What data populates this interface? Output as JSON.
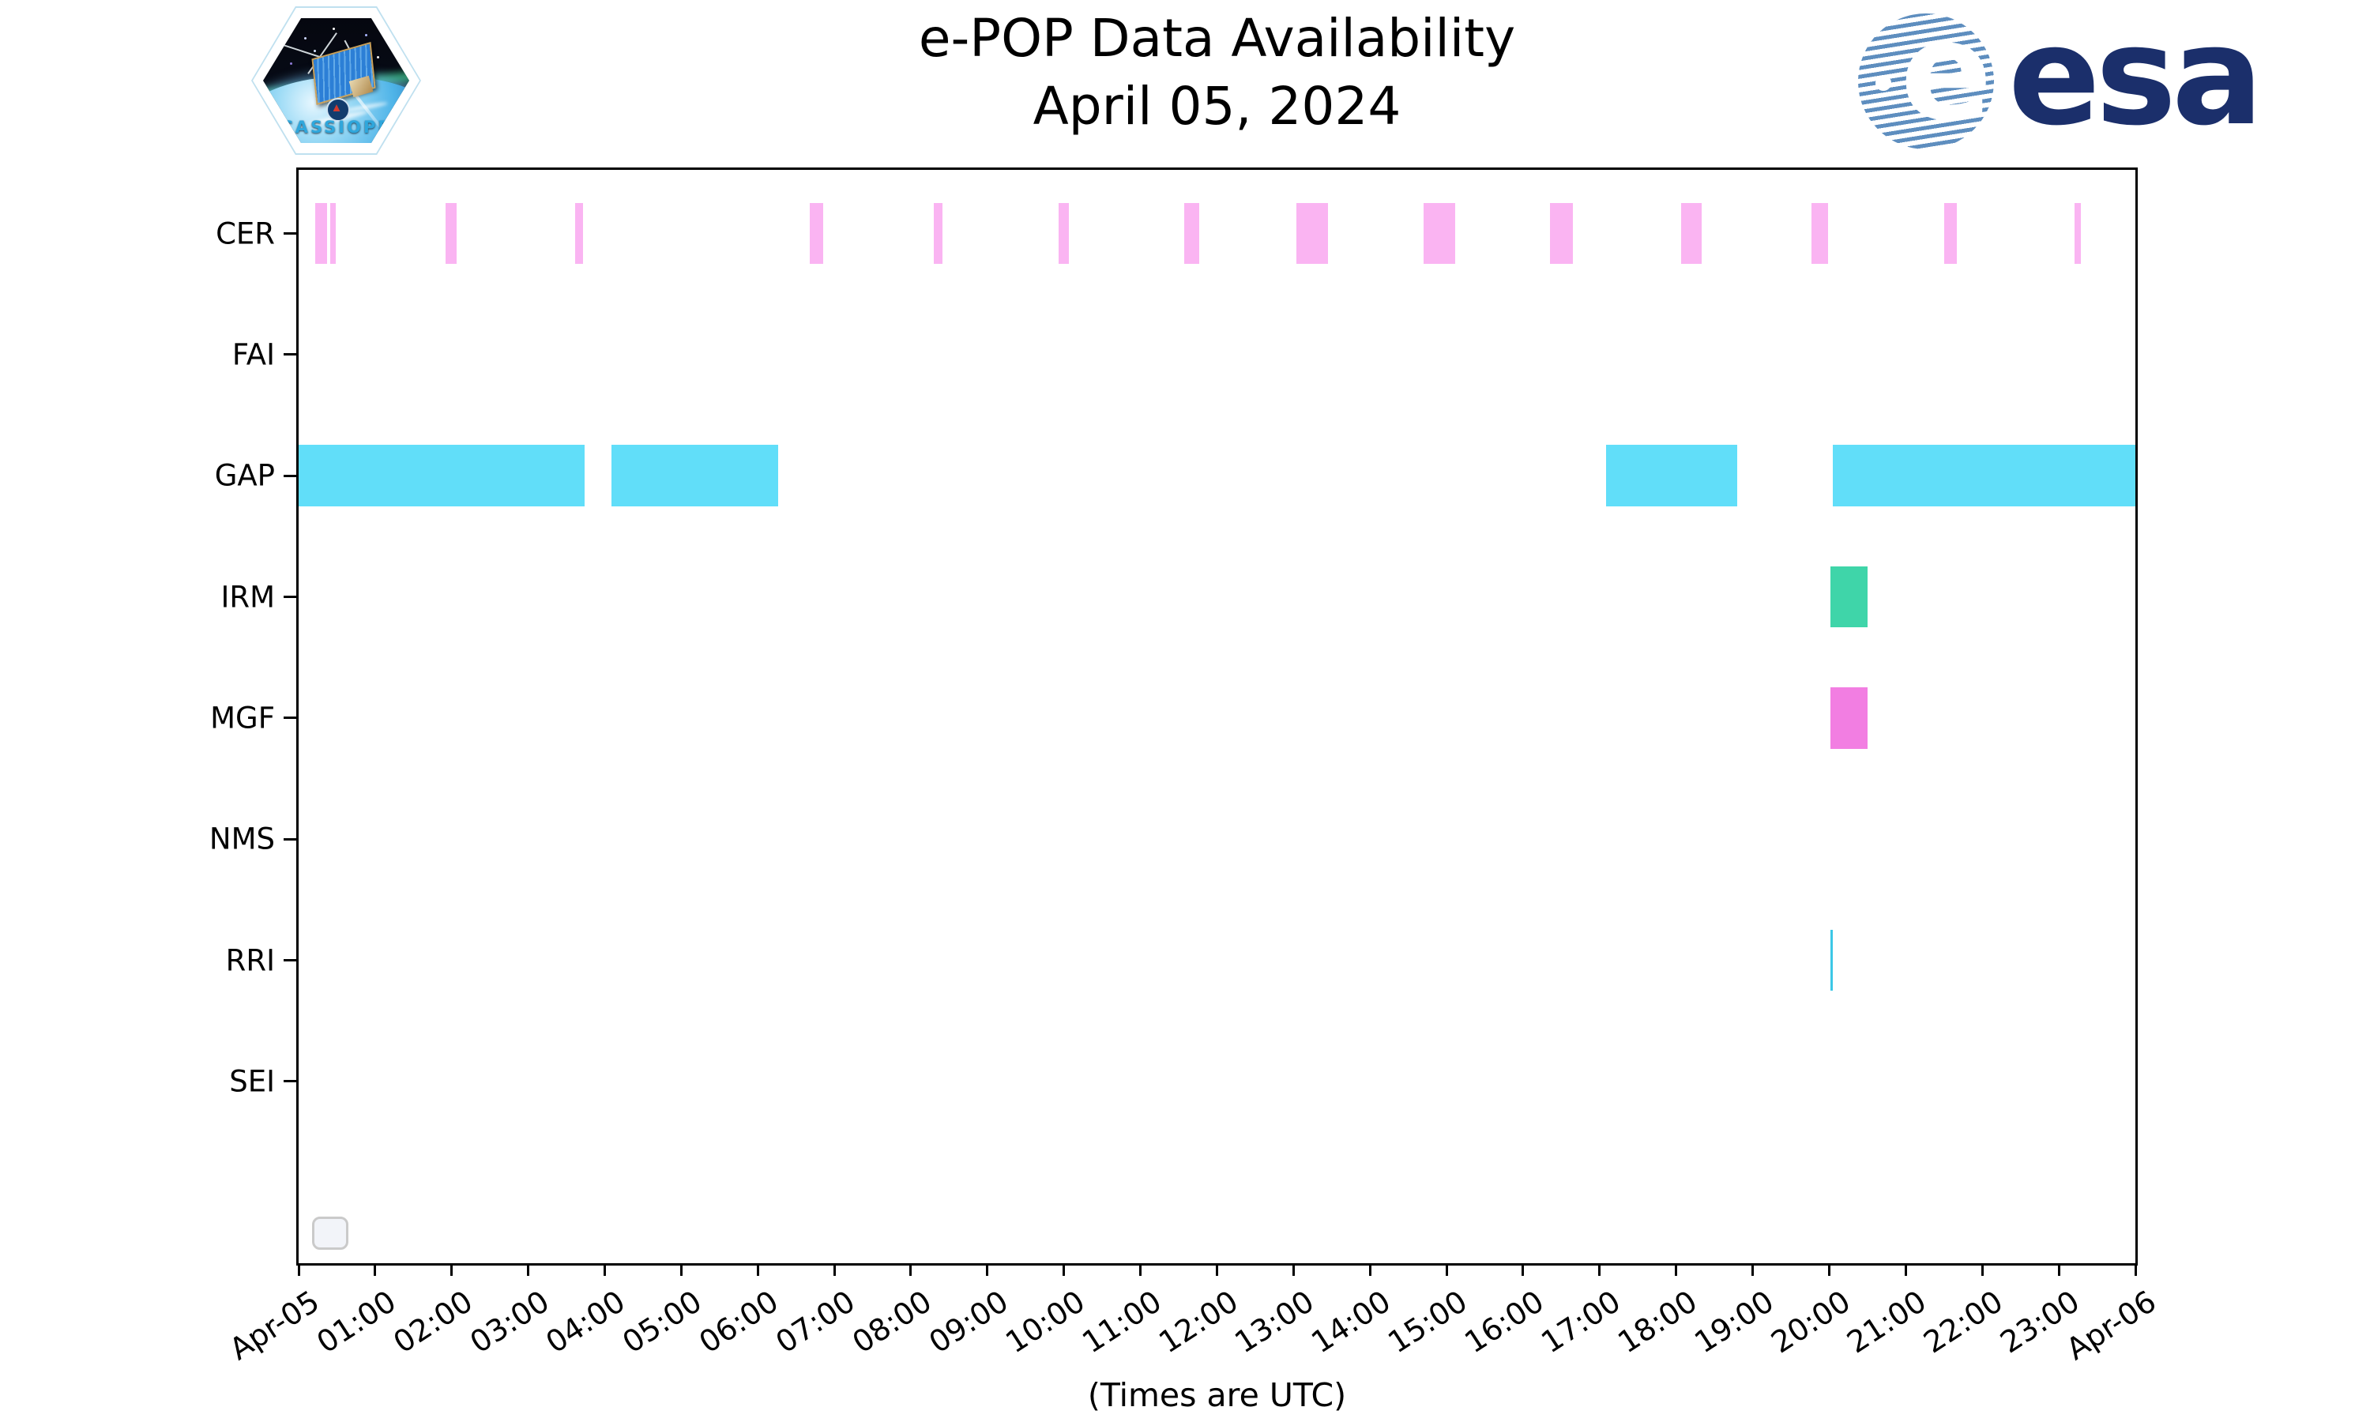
{
  "header": {
    "title": "e-POP Data Availability",
    "subtitle": "April 05, 2024"
  },
  "logos": {
    "cassiope_text": "CASSIOPE",
    "esa_text": "esa",
    "esa_e": "e"
  },
  "footer": {
    "caption": "(Times are UTC)"
  },
  "chart_data": {
    "type": "timeline",
    "title": "e-POP Data Availability",
    "subtitle": "April 05, 2024",
    "xlabel": "(Times are UTC)",
    "x_start": "Apr-05 00:00",
    "x_end": "Apr-06 00:00",
    "x_range_hours": [
      0,
      24
    ],
    "x_tick_labels": [
      "Apr-05",
      "01:00",
      "02:00",
      "03:00",
      "04:00",
      "05:00",
      "06:00",
      "07:00",
      "08:00",
      "09:00",
      "10:00",
      "11:00",
      "12:00",
      "13:00",
      "14:00",
      "15:00",
      "16:00",
      "17:00",
      "18:00",
      "19:00",
      "20:00",
      "21:00",
      "22:00",
      "23:00",
      "Apr-06"
    ],
    "rows": [
      "CER",
      "FAI",
      "GAP",
      "IRM",
      "MGF",
      "NMS",
      "RRI",
      "SEI"
    ],
    "grid": false,
    "legend": {
      "visible": true,
      "entries": [],
      "position": "lower-left"
    },
    "series": [
      {
        "instrument": "CER",
        "color": "#FAB4F2",
        "intervals": [
          [
            "00:13",
            "00:22"
          ],
          [
            "00:25",
            "00:29"
          ],
          [
            "01:55",
            "02:04"
          ],
          [
            "03:37",
            "03:43"
          ],
          [
            "06:41",
            "06:51"
          ],
          [
            "08:18",
            "08:25"
          ],
          [
            "09:56",
            "10:04"
          ],
          [
            "11:34",
            "11:46"
          ],
          [
            "13:02",
            "13:27"
          ],
          [
            "14:42",
            "15:07"
          ],
          [
            "16:21",
            "16:39"
          ],
          [
            "18:04",
            "18:20"
          ],
          [
            "19:46",
            "19:59"
          ],
          [
            "21:30",
            "21:40"
          ],
          [
            "23:12",
            "23:17"
          ]
        ]
      },
      {
        "instrument": "FAI",
        "color": null,
        "intervals": []
      },
      {
        "instrument": "GAP",
        "color": "#61DEF9",
        "intervals": [
          [
            "00:00",
            "03:44"
          ],
          [
            "04:05",
            "06:16"
          ],
          [
            "17:05",
            "18:48"
          ],
          [
            "20:03",
            "24:00"
          ]
        ]
      },
      {
        "instrument": "IRM",
        "color": "#3FD5A9",
        "intervals": [
          [
            "20:01",
            "20:30"
          ]
        ]
      },
      {
        "instrument": "MGF",
        "color": "#F27EE2",
        "intervals": [
          [
            "20:01",
            "20:30"
          ]
        ]
      },
      {
        "instrument": "NMS",
        "color": null,
        "intervals": []
      },
      {
        "instrument": "RRI",
        "color": "#3CC7E6",
        "intervals": [
          [
            "20:01",
            "20:03"
          ]
        ]
      },
      {
        "instrument": "SEI",
        "color": null,
        "intervals": []
      }
    ]
  }
}
